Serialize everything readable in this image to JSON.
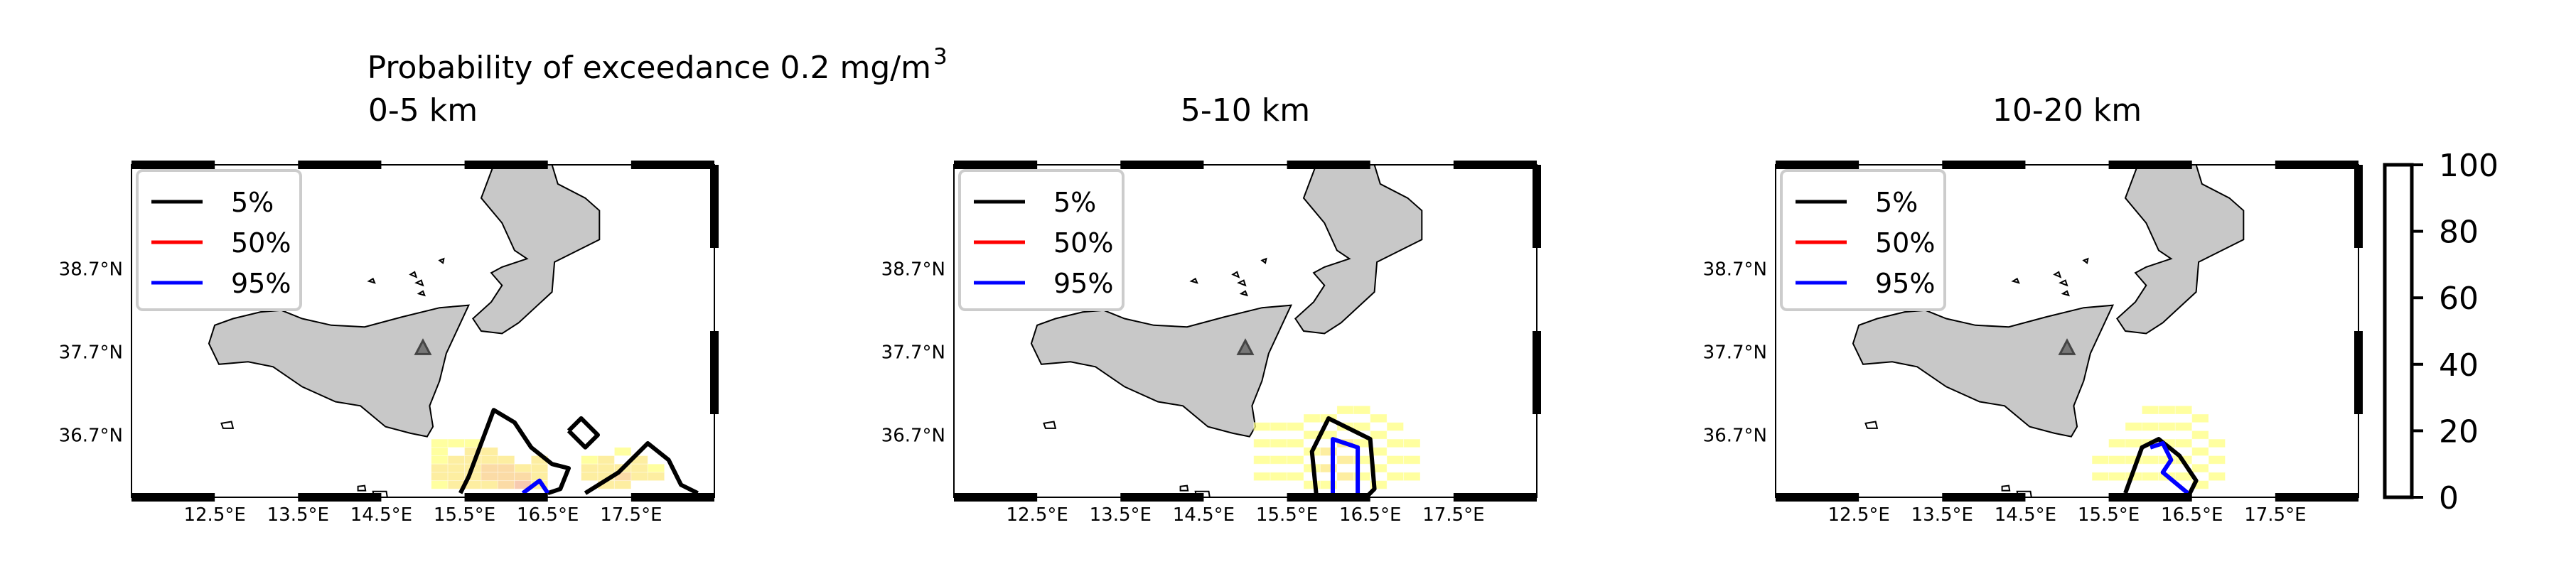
{
  "figure": {
    "title_line1": "Probability of exceedance 0.2 mg/m",
    "title_sup": "3"
  },
  "colors": {
    "land": "#c8c8c8",
    "coast": "#000000",
    "contour_5": "#000000",
    "contour_50": "#ff0000",
    "contour_95": "#0000ff",
    "volcano_marker": "#444444",
    "colorbar": [
      "#ffff80",
      "#fce882",
      "#f9cf88",
      "#f4b896",
      "#e8a3a8",
      "#d68fbd",
      "#c183cf",
      "#a87fd8",
      "#9180d5",
      "#8088cc"
    ]
  },
  "chart_data": [
    {
      "type": "heatmap",
      "title": "0-5 km",
      "x_ticks": [
        "12.5°E",
        "13.5°E",
        "14.5°E",
        "15.5°E",
        "16.5°E",
        "17.5°E"
      ],
      "y_ticks": [
        "38.7°N",
        "37.7°N",
        "36.7°N"
      ],
      "xlim": [
        11.5,
        18.5
      ],
      "ylim": [
        35.95,
        39.95
      ],
      "legend": {
        "position": "top-left",
        "entries": [
          "5%",
          "50%",
          "95%"
        ]
      },
      "cells": [
        [
          15.2,
          36.5,
          8
        ],
        [
          15.2,
          36.6,
          6
        ],
        [
          15.2,
          36.4,
          9
        ],
        [
          15.2,
          36.3,
          10
        ],
        [
          15.2,
          36.2,
          10
        ],
        [
          15.2,
          36.1,
          8
        ],
        [
          15.4,
          36.6,
          8
        ],
        [
          15.4,
          36.4,
          12
        ],
        [
          15.4,
          36.3,
          14
        ],
        [
          15.4,
          36.2,
          12
        ],
        [
          15.4,
          36.1,
          10
        ],
        [
          15.6,
          36.6,
          9
        ],
        [
          15.6,
          36.5,
          11
        ],
        [
          15.6,
          36.4,
          15
        ],
        [
          15.6,
          36.3,
          18
        ],
        [
          15.6,
          36.2,
          16
        ],
        [
          15.6,
          36.1,
          12
        ],
        [
          15.8,
          36.5,
          12
        ],
        [
          15.8,
          36.4,
          16
        ],
        [
          15.8,
          36.3,
          20
        ],
        [
          15.8,
          36.2,
          22
        ],
        [
          15.8,
          36.1,
          18
        ],
        [
          16.0,
          36.4,
          14
        ],
        [
          16.0,
          36.3,
          22
        ],
        [
          16.0,
          36.2,
          28
        ],
        [
          16.0,
          36.1,
          26
        ],
        [
          16.2,
          36.3,
          18
        ],
        [
          16.2,
          36.2,
          24
        ],
        [
          16.2,
          36.1,
          30
        ],
        [
          16.4,
          36.4,
          10
        ],
        [
          16.4,
          36.3,
          14
        ],
        [
          16.4,
          36.2,
          16
        ],
        [
          16.4,
          36.1,
          18
        ],
        [
          17.0,
          36.4,
          8
        ],
        [
          17.0,
          36.3,
          10
        ],
        [
          17.0,
          36.2,
          12
        ],
        [
          17.2,
          36.4,
          10
        ],
        [
          17.2,
          36.3,
          14
        ],
        [
          17.2,
          36.2,
          16
        ],
        [
          17.2,
          36.1,
          12
        ],
        [
          17.4,
          36.5,
          8
        ],
        [
          17.4,
          36.3,
          16
        ],
        [
          17.4,
          36.2,
          20
        ],
        [
          17.4,
          36.1,
          14
        ],
        [
          17.6,
          36.4,
          10
        ],
        [
          17.6,
          36.3,
          12
        ],
        [
          17.6,
          36.2,
          16
        ],
        [
          17.8,
          36.3,
          8
        ],
        [
          17.8,
          36.2,
          10
        ]
      ],
      "contours": {
        "5": [
          [
            [
              15.45,
              36.0
            ],
            [
              15.55,
              36.2
            ],
            [
              15.7,
              36.6
            ],
            [
              15.85,
              37.0
            ],
            [
              16.1,
              36.85
            ],
            [
              16.3,
              36.55
            ],
            [
              16.55,
              36.35
            ],
            [
              16.75,
              36.3
            ],
            [
              16.65,
              36.05
            ],
            [
              16.5,
              36.0
            ]
          ],
          [
            [
              16.75,
              36.75
            ],
            [
              16.95,
              36.55
            ],
            [
              17.1,
              36.7
            ],
            [
              16.9,
              36.9
            ],
            [
              16.75,
              36.75
            ]
          ],
          [
            [
              16.95,
              36.0
            ],
            [
              17.35,
              36.25
            ],
            [
              17.7,
              36.6
            ],
            [
              17.95,
              36.4
            ],
            [
              18.1,
              36.1
            ],
            [
              18.3,
              36.0
            ]
          ]
        ],
        "50": [],
        "95": [
          [
            [
              16.2,
              36.0
            ],
            [
              16.4,
              36.15
            ],
            [
              16.5,
              36.0
            ]
          ]
        ]
      }
    },
    {
      "type": "heatmap",
      "title": "5-10 km",
      "x_ticks": [
        "12.5°E",
        "13.5°E",
        "14.5°E",
        "15.5°E",
        "16.5°E",
        "17.5°E"
      ],
      "y_ticks": [
        "38.7°N",
        "37.7°N",
        "36.7°N"
      ],
      "xlim": [
        11.5,
        18.5
      ],
      "ylim": [
        35.95,
        39.95
      ],
      "legend": {
        "position": "top-left",
        "entries": [
          "5%",
          "50%",
          "95%"
        ]
      },
      "cells": [
        [
          15.2,
          36.8,
          4
        ],
        [
          15.2,
          36.6,
          4
        ],
        [
          15.2,
          36.4,
          5
        ],
        [
          15.2,
          36.2,
          5
        ],
        [
          15.4,
          36.8,
          5
        ],
        [
          15.4,
          36.6,
          6
        ],
        [
          15.4,
          36.4,
          6
        ],
        [
          15.4,
          36.2,
          5
        ],
        [
          15.6,
          36.8,
          5
        ],
        [
          15.6,
          36.6,
          7
        ],
        [
          15.6,
          36.4,
          7
        ],
        [
          15.6,
          36.2,
          6
        ],
        [
          15.8,
          36.9,
          6
        ],
        [
          15.8,
          36.7,
          8
        ],
        [
          15.8,
          36.5,
          9
        ],
        [
          15.8,
          36.3,
          8
        ],
        [
          15.8,
          36.1,
          7
        ],
        [
          16.0,
          36.9,
          6
        ],
        [
          16.0,
          36.7,
          9
        ],
        [
          16.0,
          36.5,
          10
        ],
        [
          16.0,
          36.3,
          10
        ],
        [
          16.0,
          36.1,
          8
        ],
        [
          16.2,
          37.0,
          6
        ],
        [
          16.2,
          36.8,
          9
        ],
        [
          16.2,
          36.6,
          11
        ],
        [
          16.2,
          36.4,
          11
        ],
        [
          16.2,
          36.2,
          10
        ],
        [
          16.4,
          37.0,
          5
        ],
        [
          16.4,
          36.8,
          8
        ],
        [
          16.4,
          36.6,
          9
        ],
        [
          16.4,
          36.4,
          9
        ],
        [
          16.4,
          36.2,
          8
        ],
        [
          16.6,
          36.9,
          5
        ],
        [
          16.6,
          36.7,
          6
        ],
        [
          16.6,
          36.5,
          7
        ],
        [
          16.6,
          36.3,
          6
        ],
        [
          16.6,
          36.1,
          5
        ],
        [
          16.8,
          36.8,
          4
        ],
        [
          16.8,
          36.6,
          5
        ],
        [
          16.8,
          36.4,
          5
        ],
        [
          16.8,
          36.2,
          4
        ],
        [
          17.0,
          36.6,
          4
        ],
        [
          17.0,
          36.4,
          4
        ],
        [
          17.0,
          36.2,
          4
        ]
      ],
      "contours": {
        "5": [
          [
            [
              15.85,
              36.0
            ],
            [
              15.8,
              36.5
            ],
            [
              16.0,
              36.9
            ],
            [
              16.5,
              36.65
            ],
            [
              16.55,
              36.05
            ],
            [
              16.45,
              35.95
            ]
          ]
        ],
        "50": [],
        "95": [
          [
            [
              16.05,
              36.0
            ],
            [
              16.05,
              36.65
            ],
            [
              16.35,
              36.55
            ],
            [
              16.35,
              36.0
            ]
          ]
        ]
      }
    },
    {
      "type": "heatmap",
      "title": "10-20 km",
      "x_ticks": [
        "12.5°E",
        "13.5°E",
        "14.5°E",
        "15.5°E",
        "16.5°E",
        "17.5°E"
      ],
      "y_ticks": [
        "38.7°N",
        "37.7°N",
        "36.7°N"
      ],
      "xlim": [
        11.5,
        18.5
      ],
      "ylim": [
        35.95,
        39.95
      ],
      "legend": {
        "position": "top-left",
        "entries": [
          "5%",
          "50%",
          "95%"
        ]
      },
      "cells": [
        [
          15.4,
          36.4,
          4
        ],
        [
          15.4,
          36.2,
          4
        ],
        [
          15.6,
          36.6,
          4
        ],
        [
          15.6,
          36.4,
          5
        ],
        [
          15.6,
          36.2,
          5
        ],
        [
          15.8,
          36.8,
          4
        ],
        [
          15.8,
          36.6,
          5
        ],
        [
          15.8,
          36.4,
          6
        ],
        [
          15.8,
          36.2,
          6
        ],
        [
          16.0,
          37.0,
          4
        ],
        [
          16.0,
          36.8,
          5
        ],
        [
          16.0,
          36.6,
          7
        ],
        [
          16.0,
          36.4,
          8
        ],
        [
          16.0,
          36.2,
          7
        ],
        [
          16.2,
          37.0,
          5
        ],
        [
          16.2,
          36.8,
          6
        ],
        [
          16.2,
          36.6,
          8
        ],
        [
          16.2,
          36.4,
          9
        ],
        [
          16.2,
          36.2,
          8
        ],
        [
          16.4,
          37.0,
          4
        ],
        [
          16.4,
          36.8,
          6
        ],
        [
          16.4,
          36.6,
          7
        ],
        [
          16.4,
          36.4,
          8
        ],
        [
          16.4,
          36.2,
          7
        ],
        [
          16.6,
          36.9,
          4
        ],
        [
          16.6,
          36.7,
          5
        ],
        [
          16.6,
          36.5,
          6
        ],
        [
          16.6,
          36.3,
          5
        ],
        [
          16.6,
          36.1,
          4
        ],
        [
          16.8,
          36.6,
          4
        ],
        [
          16.8,
          36.4,
          4
        ],
        [
          16.8,
          36.2,
          4
        ]
      ],
      "contours": {
        "5": [
          [
            [
              15.7,
              36.0
            ],
            [
              15.9,
              36.55
            ],
            [
              16.1,
              36.65
            ],
            [
              16.35,
              36.45
            ],
            [
              16.55,
              36.15
            ],
            [
              16.45,
              35.95
            ]
          ]
        ],
        "50": [],
        "95": [
          [
            [
              16.0,
              36.55
            ],
            [
              16.15,
              36.6
            ],
            [
              16.25,
              36.4
            ],
            [
              16.15,
              36.25
            ],
            [
              16.45,
              36.0
            ]
          ]
        ]
      }
    }
  ],
  "colorbar": {
    "ticks": [
      "0",
      "20",
      "40",
      "60",
      "80",
      "100"
    ],
    "range": [
      0,
      100
    ]
  },
  "volcano": {
    "lon": 15.0,
    "lat": 37.75
  }
}
